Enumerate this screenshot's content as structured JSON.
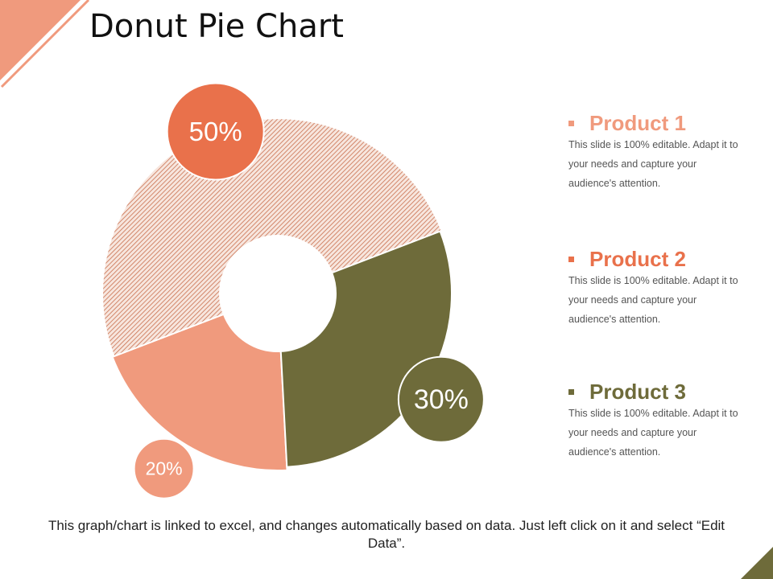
{
  "slide": {
    "title": "Donut Pie Chart",
    "footer": "This graph/chart is linked to excel, and changes automatically based on data. Just left click on it and select “Edit Data”."
  },
  "colors": {
    "product1": "#F09A7D",
    "product2": "#E9714B",
    "product2_hatch": "#C96F4E",
    "product3": "#6E6B3A",
    "corner_top_left": "#F09A7D",
    "corner_bottom_right": "#6E6B3A"
  },
  "legend": [
    {
      "title": "Product 1",
      "description": "This slide is 100% editable. Adapt it to your needs and capture your audience's attention."
    },
    {
      "title": "Product 2",
      "description": "This slide is 100% editable. Adapt it to your needs and capture your audience's attention."
    },
    {
      "title": "Product 3",
      "description": "This slide is 100% editable. Adapt it to your needs and capture your audience's attention."
    }
  ],
  "chart_data": {
    "type": "pie",
    "donut": true,
    "categories": [
      "Product 1",
      "Product 2",
      "Product 3"
    ],
    "values": [
      20,
      50,
      30
    ],
    "labels": [
      "20%",
      "50%",
      "30%"
    ],
    "title": "",
    "legend_position": "right"
  }
}
